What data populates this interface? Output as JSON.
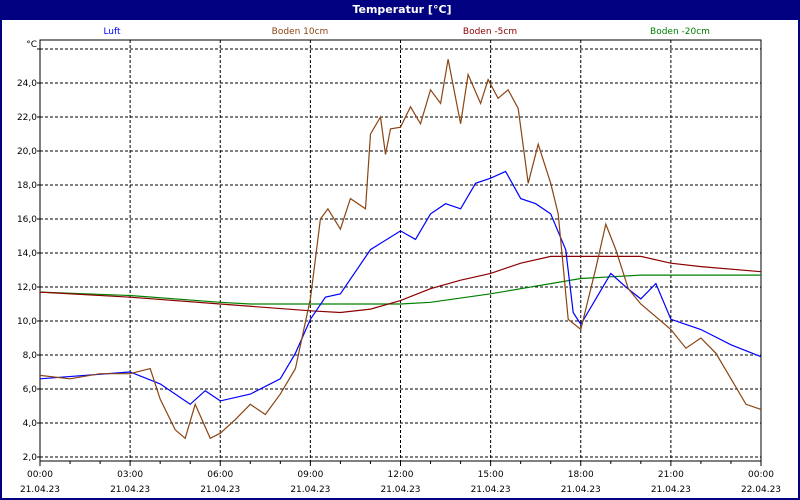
{
  "chart_data": {
    "type": "line",
    "title": "Temperatur [°C]",
    "ylabel": "°C",
    "xlabel": "",
    "ylim": [
      2.0,
      26.6
    ],
    "yticks": [
      2,
      4,
      6,
      8,
      10,
      12,
      14,
      16,
      18,
      20,
      22,
      24,
      26
    ],
    "ytick_labels": [
      "2,0",
      "4,0",
      "6,0",
      "8,0",
      "10,0",
      "12,0",
      "14,0",
      "16,0",
      "18,0",
      "20,0",
      "22,0",
      "24,0",
      ""
    ],
    "xlim": [
      "21.04.23 00:00",
      "22.04.23 00:00"
    ],
    "xticks": [
      {
        "time": "00:00",
        "date": "21.04.23"
      },
      {
        "time": "03:00",
        "date": "21.04.23"
      },
      {
        "time": "06:00",
        "date": "21.04.23"
      },
      {
        "time": "09:00",
        "date": "21.04.23"
      },
      {
        "time": "12:00",
        "date": "21.04.23"
      },
      {
        "time": "15:00",
        "date": "21.04.23"
      },
      {
        "time": "18:00",
        "date": "21.04.23"
      },
      {
        "time": "21:00",
        "date": "21.04.23"
      },
      {
        "time": "00:00",
        "date": "22.04.23"
      }
    ],
    "grid": true,
    "legend_placement": "top",
    "series": [
      {
        "name": "Luft",
        "color": "#0000ff",
        "x": [
          "00:00",
          "03:00",
          "04:00",
          "05:00",
          "05:30",
          "06:00",
          "07:00",
          "08:00",
          "08:30",
          "09:00",
          "09:30",
          "10:00",
          "11:00",
          "12:00",
          "12:30",
          "13:00",
          "13:30",
          "14:00",
          "14:30",
          "15:00",
          "15:30",
          "16:00",
          "16:30",
          "17:00",
          "17:30",
          "17:45",
          "18:00",
          "18:30",
          "19:00",
          "19:30",
          "20:00",
          "20:30",
          "21:00",
          "22:00",
          "23:00",
          "24:00"
        ],
        "y": [
          6.6,
          7.0,
          6.3,
          5.1,
          5.9,
          5.3,
          5.7,
          6.6,
          8.1,
          10.1,
          11.4,
          11.6,
          14.2,
          15.3,
          14.8,
          16.3,
          16.9,
          16.6,
          18.1,
          18.4,
          18.8,
          17.2,
          16.9,
          16.3,
          14.2,
          10.5,
          9.8,
          11.3,
          12.8,
          12.0,
          11.3,
          12.2,
          10.1,
          9.5,
          8.6,
          7.9
        ]
      },
      {
        "name": "Boden 10cm",
        "color": "#8b4513",
        "x": [
          "00:00",
          "01:00",
          "02:00",
          "03:00",
          "03:40",
          "04:00",
          "04:30",
          "04:50",
          "05:10",
          "05:40",
          "06:00",
          "06:30",
          "07:00",
          "07:30",
          "08:00",
          "08:30",
          "09:00",
          "09:20",
          "09:35",
          "10:00",
          "10:20",
          "10:50",
          "11:00",
          "11:20",
          "11:30",
          "11:40",
          "12:00",
          "12:20",
          "12:40",
          "13:00",
          "13:20",
          "13:35",
          "14:00",
          "14:15",
          "14:40",
          "14:55",
          "15:15",
          "15:35",
          "15:55",
          "16:15",
          "16:35",
          "17:00",
          "17:15",
          "17:35",
          "18:00",
          "18:30",
          "18:50",
          "19:10",
          "19:35",
          "20:00",
          "21:00",
          "21:30",
          "22:00",
          "22:30",
          "23:00",
          "23:30",
          "24:00"
        ],
        "y": [
          6.8,
          6.6,
          6.9,
          6.9,
          7.2,
          5.4,
          3.6,
          3.1,
          5.1,
          3.1,
          3.4,
          4.2,
          5.1,
          4.5,
          5.7,
          7.2,
          11.3,
          16.0,
          16.6,
          15.4,
          17.2,
          16.6,
          21.0,
          22.0,
          19.8,
          21.3,
          21.4,
          22.6,
          21.6,
          23.6,
          22.8,
          25.4,
          21.6,
          24.5,
          22.8,
          24.2,
          23.1,
          23.6,
          22.5,
          18.1,
          20.4,
          18.1,
          16.3,
          10.1,
          9.5,
          13.1,
          15.7,
          14.2,
          11.9,
          11.0,
          9.5,
          8.4,
          9.0,
          8.1,
          6.6,
          5.1,
          4.8
        ]
      },
      {
        "name": "Boden -5cm",
        "color": "#8b0000",
        "x": [
          "00:00",
          "03:00",
          "06:00",
          "09:00",
          "10:00",
          "11:00",
          "12:00",
          "13:00",
          "14:00",
          "15:00",
          "16:00",
          "17:00",
          "18:30",
          "20:00",
          "21:00",
          "22:00",
          "24:00"
        ],
        "y": [
          11.7,
          11.4,
          11.0,
          10.6,
          10.5,
          10.7,
          11.2,
          11.9,
          12.4,
          12.8,
          13.4,
          13.8,
          13.8,
          13.8,
          13.4,
          13.2,
          12.9
        ]
      },
      {
        "name": "Boden -20cm",
        "color": "#008000",
        "x": [
          "00:00",
          "03:00",
          "06:00",
          "07:00",
          "09:00",
          "12:00",
          "13:00",
          "15:00",
          "16:00",
          "17:00",
          "18:00",
          "19:00",
          "20:00",
          "24:00"
        ],
        "y": [
          11.7,
          11.5,
          11.1,
          11.0,
          11.0,
          11.0,
          11.1,
          11.6,
          11.9,
          12.2,
          12.5,
          12.6,
          12.7,
          12.7
        ]
      }
    ]
  }
}
